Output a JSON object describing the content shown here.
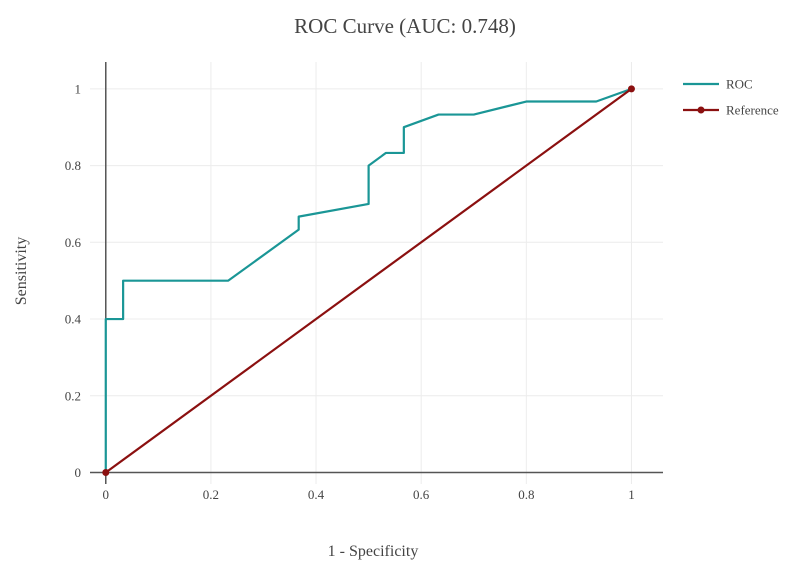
{
  "chart_data": {
    "type": "line",
    "title": "ROC Curve (AUC: 0.748)",
    "xlabel": "1 - Specificity",
    "ylabel": "Sensitivity",
    "xlim": [
      -0.03,
      1.06
    ],
    "ylim": [
      -0.03,
      1.07
    ],
    "x_ticks": [
      0,
      0.2,
      0.4,
      0.6,
      0.8,
      1
    ],
    "x_tick_labels": [
      "0",
      "0.2",
      "0.4",
      "0.6",
      "0.8",
      "1"
    ],
    "y_ticks": [
      0,
      0.2,
      0.4,
      0.6,
      0.8,
      1
    ],
    "y_tick_labels": [
      "0",
      "0.2",
      "0.4",
      "0.6",
      "0.8",
      "1"
    ],
    "grid": true,
    "legend": "top-right",
    "series": [
      {
        "name": "ROC",
        "color": "#1a9696",
        "mode": "lines",
        "x": [
          0,
          0,
          0.033,
          0.033,
          0.233,
          0.367,
          0.367,
          0.5,
          0.5,
          0.533,
          0.567,
          0.567,
          0.633,
          0.7,
          0.8,
          0.933,
          1
        ],
        "y": [
          0,
          0.4,
          0.4,
          0.5,
          0.5,
          0.633,
          0.667,
          0.7,
          0.8,
          0.833,
          0.833,
          0.9,
          0.933,
          0.933,
          0.967,
          0.967,
          1
        ]
      },
      {
        "name": "Reference",
        "color": "#8b1010",
        "mode": "lines+markers",
        "x": [
          0,
          1
        ],
        "y": [
          0,
          1
        ]
      }
    ]
  }
}
